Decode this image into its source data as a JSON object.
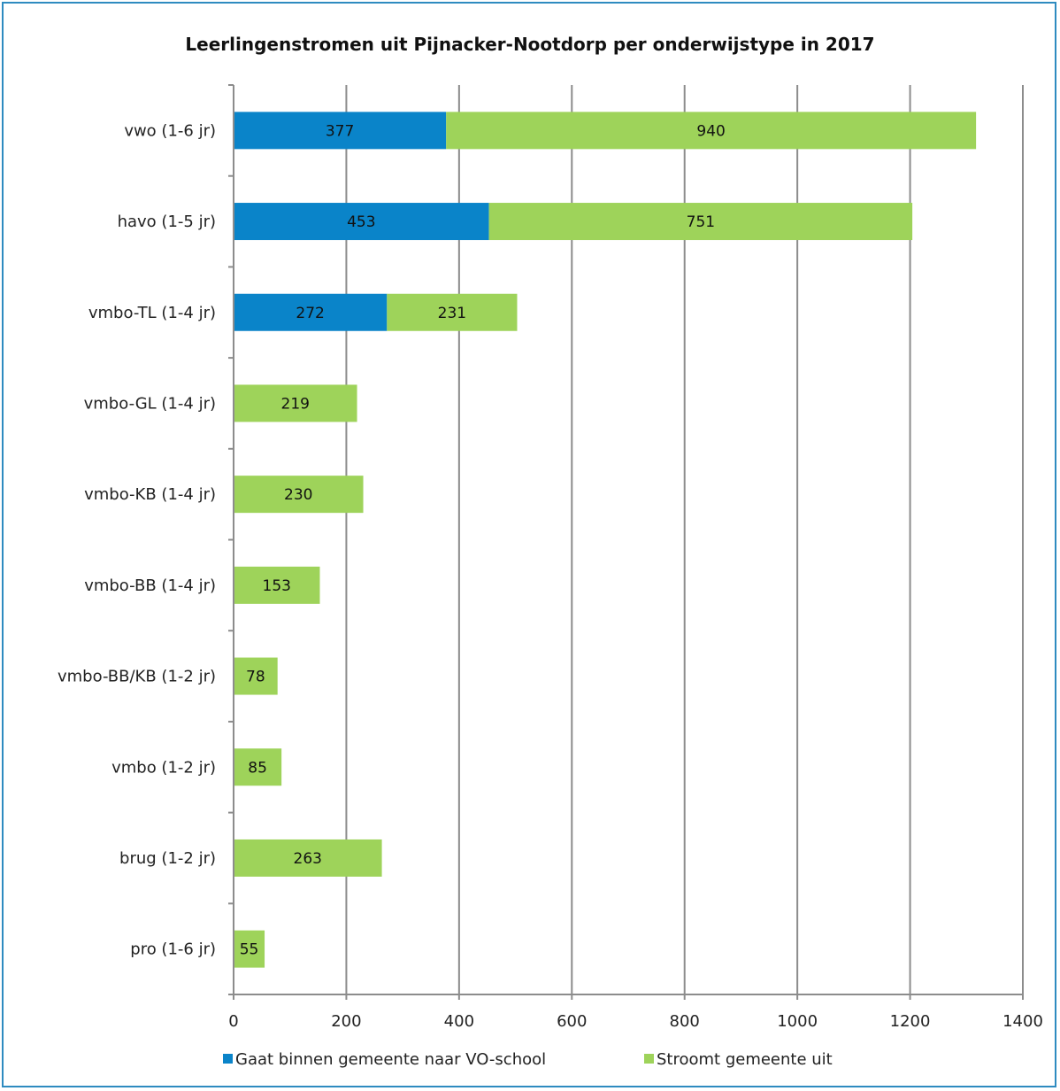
{
  "chart_data": {
    "type": "bar",
    "orientation": "horizontal",
    "stacked": true,
    "title": "Leerlingenstromen uit Pijnacker-Nootdorp per onderwijstype in 2017",
    "xlabel": "",
    "ylabel": "",
    "categories": [
      "vwo (1-6 jr)",
      "havo (1-5 jr)",
      "vmbo-TL (1-4 jr)",
      "vmbo-GL (1-4 jr)",
      "vmbo-KB (1-4 jr)",
      "vmbo-BB (1-4 jr)",
      "vmbo-BB/KB (1-2 jr)",
      "vmbo (1-2 jr)",
      "brug (1-2 jr)",
      "pro (1-6 jr)"
    ],
    "series": [
      {
        "name": "Gaat binnen gemeente naar VO-school",
        "color": "#0a84c9",
        "values": [
          377,
          453,
          272,
          0,
          0,
          0,
          0,
          0,
          0,
          0
        ],
        "labels": [
          "377",
          "453",
          "272",
          "",
          "",
          "",
          "",
          "",
          "",
          ""
        ]
      },
      {
        "name": "Stroomt gemeente uit",
        "color": "#9ed35a",
        "values": [
          940,
          751,
          231,
          219,
          230,
          153,
          78,
          85,
          263,
          55
        ],
        "labels": [
          "940",
          "751",
          "231",
          "219",
          "230",
          "153",
          "78",
          "85",
          "263",
          "55"
        ]
      }
    ],
    "xlim": [
      0,
      1400
    ],
    "xticks": [
      "0",
      "200",
      "400",
      "600",
      "800",
      "1000",
      "1200",
      "1400"
    ],
    "grid": "vertical",
    "legend_position": "bottom"
  }
}
